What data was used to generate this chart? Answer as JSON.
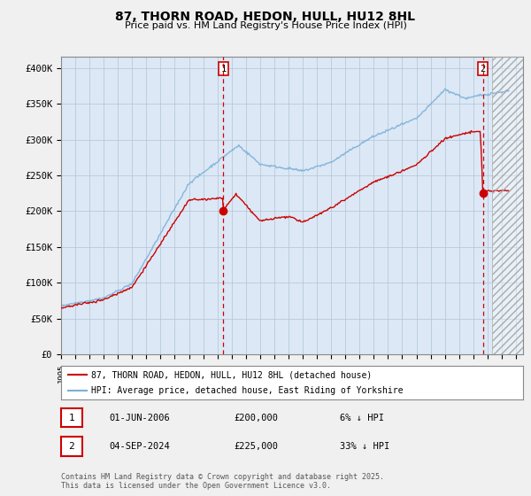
{
  "title_line1": "87, THORN ROAD, HEDON, HULL, HU12 8HL",
  "title_line2": "Price paid vs. HM Land Registry's House Price Index (HPI)",
  "ylabel_ticks": [
    "£0",
    "£50K",
    "£100K",
    "£150K",
    "£200K",
    "£250K",
    "£300K",
    "£350K",
    "£400K"
  ],
  "ytick_values": [
    0,
    50000,
    100000,
    150000,
    200000,
    250000,
    300000,
    350000,
    400000
  ],
  "ylim": [
    0,
    415000
  ],
  "xlim_start": 1995.0,
  "xlim_end": 2027.5,
  "hpi_color": "#7ab0d8",
  "price_color": "#cc0000",
  "sale1_x": 2006.42,
  "sale1_y": 200000,
  "sale2_x": 2024.67,
  "sale2_y": 225000,
  "sale1_date": "01-JUN-2006",
  "sale1_price_str": "£200,000",
  "sale1_pct": "6% ↓ HPI",
  "sale2_date": "04-SEP-2024",
  "sale2_price_str": "£225,000",
  "sale2_pct": "33% ↓ HPI",
  "legend_label1": "87, THORN ROAD, HEDON, HULL, HU12 8HL (detached house)",
  "legend_label2": "HPI: Average price, detached house, East Riding of Yorkshire",
  "footnote": "Contains HM Land Registry data © Crown copyright and database right 2025.\nThis data is licensed under the Open Government Licence v3.0.",
  "background_color": "#f0f0f0",
  "plot_bg_color": "#dce8f5",
  "grid_color": "#b0c4d8",
  "hatch_start": 2025.33,
  "seed": 42
}
